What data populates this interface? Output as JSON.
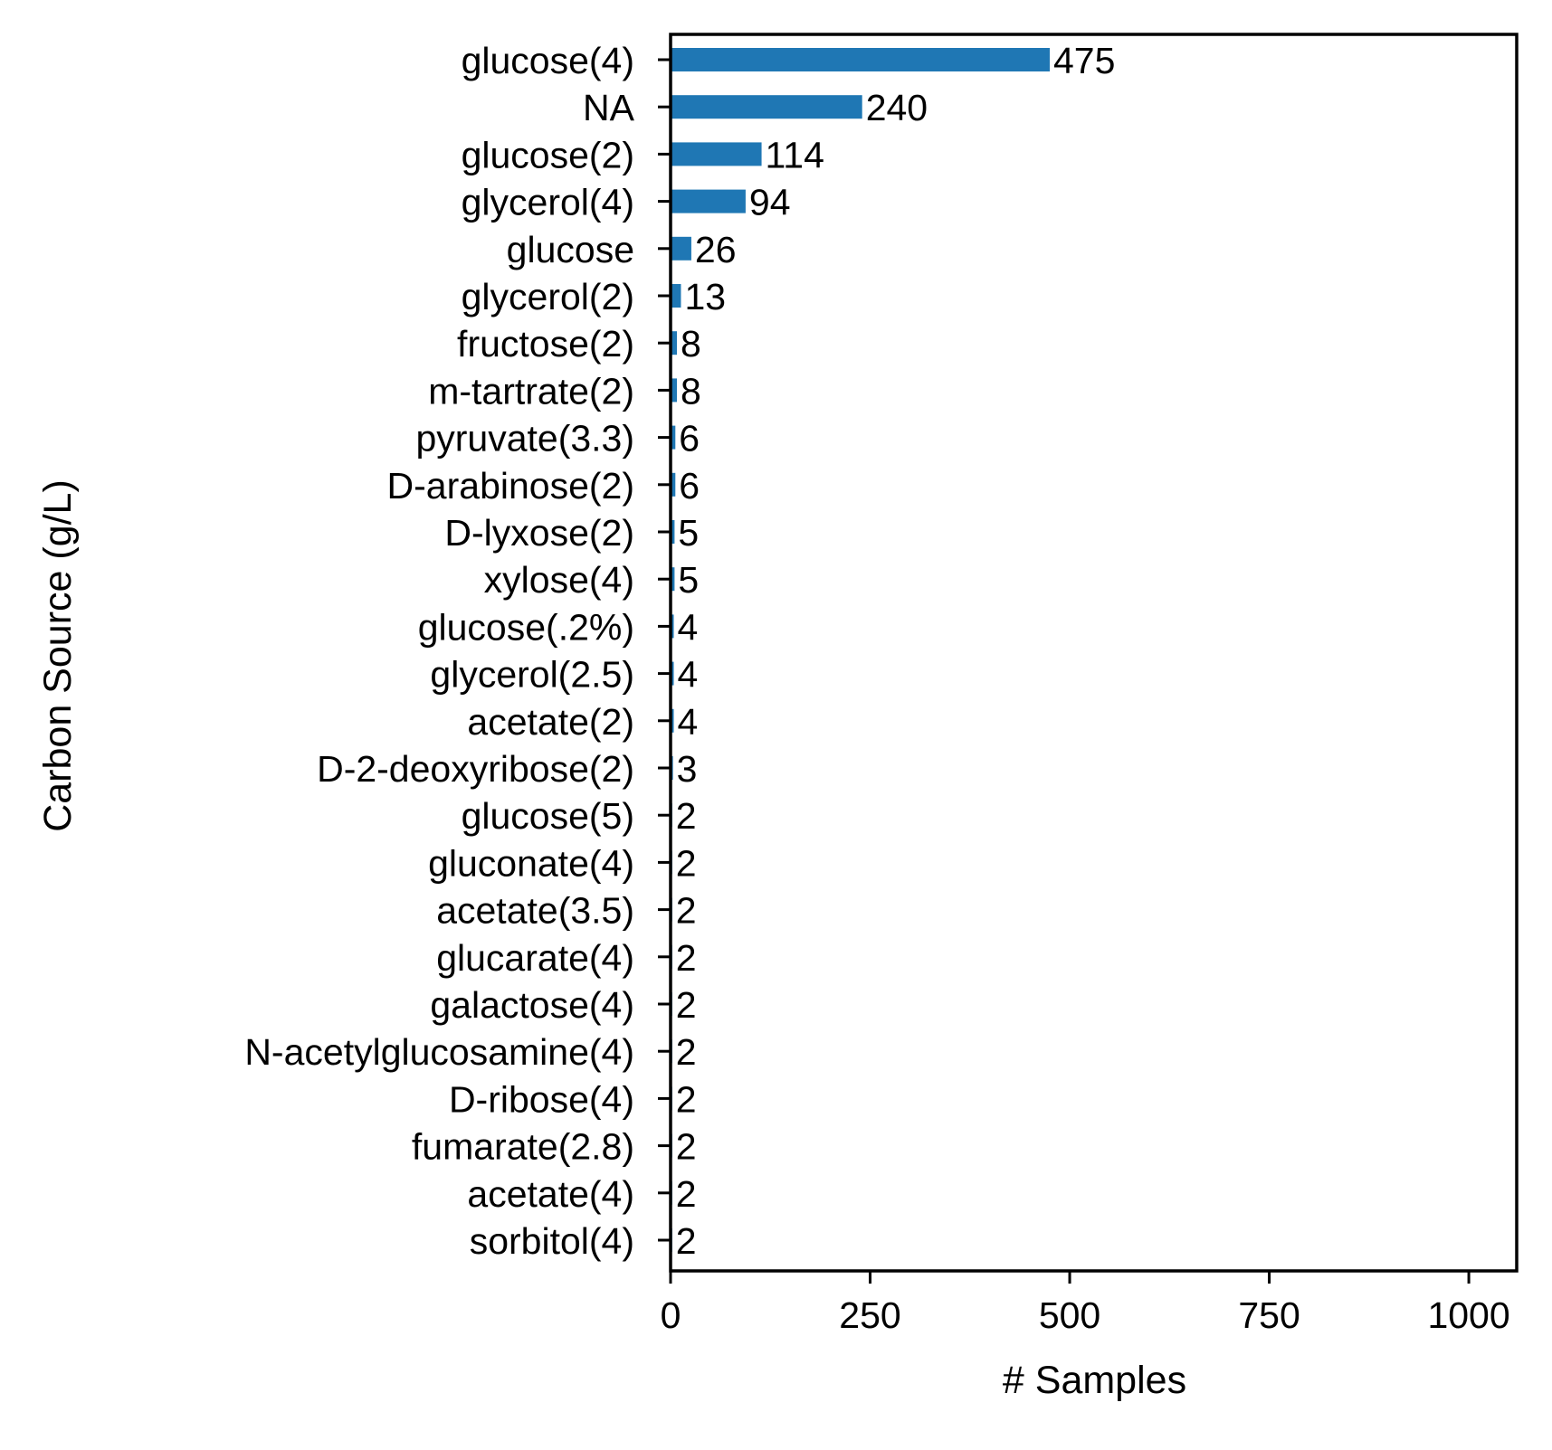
{
  "chart_data": {
    "type": "bar",
    "orientation": "horizontal",
    "categories": [
      "glucose(4)",
      "NA",
      "glucose(2)",
      "glycerol(4)",
      "glucose",
      "glycerol(2)",
      "fructose(2)",
      "m-tartrate(2)",
      "pyruvate(3.3)",
      "D-arabinose(2)",
      "D-lyxose(2)",
      "xylose(4)",
      "glucose(.2%)",
      "glycerol(2.5)",
      "acetate(2)",
      "D-2-deoxyribose(2)",
      "glucose(5)",
      "gluconate(4)",
      "acetate(3.5)",
      "glucarate(4)",
      "galactose(4)",
      "N-acetylglucosamine(4)",
      "D-ribose(4)",
      "fumarate(2.8)",
      "acetate(4)",
      "sorbitol(4)"
    ],
    "values": [
      475,
      240,
      114,
      94,
      26,
      13,
      8,
      8,
      6,
      6,
      5,
      5,
      4,
      4,
      4,
      3,
      2,
      2,
      2,
      2,
      2,
      2,
      2,
      2,
      2,
      2
    ],
    "data_labels": [
      "475",
      "240",
      "114",
      "94",
      "26",
      "13",
      "8",
      "8",
      "6",
      "6",
      "5",
      "5",
      "4",
      "4",
      "4",
      "3",
      "2",
      "2",
      "2",
      "2",
      "2",
      "2",
      "2",
      "2",
      "2",
      "2"
    ],
    "xlabel": "# Samples",
    "ylabel": "Carbon Source (g/L)",
    "xlim": [
      0,
      1060
    ],
    "xticks": [
      0,
      250,
      500,
      750,
      1000
    ],
    "xtick_labels": [
      "0",
      "250",
      "500",
      "750",
      "1000"
    ],
    "grid": false,
    "legend": "none",
    "bar_color": "#1f77b4"
  }
}
